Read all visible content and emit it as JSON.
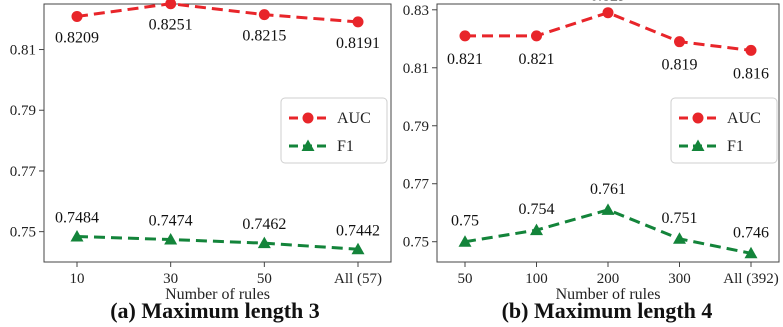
{
  "colors": {
    "auc": "#e8252a",
    "f1": "#13843a"
  },
  "chart_data": [
    {
      "type": "line",
      "caption": "(a) Maximum length 3",
      "xlabel": "Number of rules",
      "ylabel": "",
      "categories": [
        "10",
        "30",
        "50",
        "All (57)"
      ],
      "ylim": [
        0.74,
        0.825
      ],
      "yticks": [
        "0.75",
        "0.77",
        "0.79",
        "0.81"
      ],
      "legend": "right",
      "grid": false,
      "series": [
        {
          "name": "AUC",
          "marker": "circle",
          "values": [
            0.8209,
            0.8251,
            0.8215,
            0.8191
          ],
          "labels": [
            "0.8209",
            "0.8251",
            "0.8215",
            "0.8191"
          ]
        },
        {
          "name": "F1",
          "marker": "triangle",
          "values": [
            0.7484,
            0.7474,
            0.7462,
            0.7442
          ],
          "labels": [
            "0.7484",
            "0.7474",
            "0.7462",
            "0.7442"
          ]
        }
      ]
    },
    {
      "type": "line",
      "caption": "(b) Maximum length 4",
      "xlabel": "Number of rules",
      "ylabel": "",
      "categories": [
        "50",
        "100",
        "200",
        "300",
        "All (392)"
      ],
      "ylim": [
        0.743,
        0.832
      ],
      "yticks": [
        "0.75",
        "0.77",
        "0.79",
        "0.81",
        "0.83"
      ],
      "legend": "right",
      "grid": false,
      "series": [
        {
          "name": "AUC",
          "marker": "circle",
          "values": [
            0.821,
            0.821,
            0.829,
            0.819,
            0.816
          ],
          "labels": [
            "0.821",
            "0.821",
            "0.829",
            "0.819",
            "0.816"
          ]
        },
        {
          "name": "F1",
          "marker": "triangle",
          "values": [
            0.75,
            0.754,
            0.761,
            0.751,
            0.746
          ],
          "labels": [
            "0.75",
            "0.754",
            "0.761",
            "0.751",
            "0.746"
          ]
        }
      ]
    }
  ]
}
